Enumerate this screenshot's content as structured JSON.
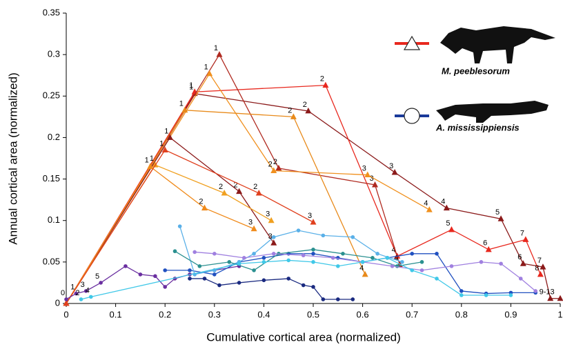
{
  "chart_data": {
    "type": "line",
    "x_label": "Cumulative cortical area (normalized)",
    "y_label": "Annual cortical area (normalized)",
    "xlim": [
      0,
      1
    ],
    "xticks": [
      0,
      0.1,
      0.2,
      0.3,
      0.4,
      0.5,
      0.6,
      0.7,
      0.8,
      0.9,
      1
    ],
    "ylim": [
      0,
      0.35
    ],
    "yticks": [
      0,
      0.05,
      0.1,
      0.15,
      0.2,
      0.25,
      0.3,
      0.35
    ],
    "legend": [
      {
        "name": "M. peeblesorum",
        "color": "#e8281e",
        "marker": "triangle"
      },
      {
        "name": "A. mississippiensis",
        "color": "#1a3a9a",
        "marker": "circle"
      }
    ],
    "series": [
      {
        "color": "#8b1a1a",
        "marker": "triangle",
        "x": [
          0,
          0.26,
          0.49,
          0.665,
          0.77,
          0.88,
          0.925,
          0.965,
          0.98,
          1.0
        ],
        "values": [
          0,
          0.253,
          0.232,
          0.158,
          0.115,
          0.102,
          0.048,
          0.044,
          0.006,
          0.006
        ],
        "point_labels": [
          null,
          "1",
          "2",
          "3",
          "4",
          "5",
          "6",
          "7",
          "9-13",
          null
        ]
      },
      {
        "color": "#e8281e",
        "marker": "triangle",
        "x": [
          0,
          0.26,
          0.525,
          0.67,
          0.78,
          0.855,
          0.93,
          0.96
        ],
        "values": [
          0,
          0.255,
          0.263,
          0.057,
          0.089,
          0.065,
          0.077,
          0.035
        ],
        "point_labels": [
          null,
          "1",
          "2",
          "4",
          "5",
          "6",
          "7",
          "8"
        ]
      },
      {
        "color": "#b02a20",
        "marker": "triangle",
        "x": [
          0,
          0.31,
          0.43,
          0.625,
          0.675
        ],
        "values": [
          0,
          0.3,
          0.163,
          0.143,
          0.047
        ],
        "point_labels": [
          null,
          "1",
          "2",
          "3",
          "4"
        ]
      },
      {
        "color": "#f0901e",
        "marker": "triangle",
        "x": [
          0,
          0.29,
          0.42,
          0.61,
          0.735
        ],
        "values": [
          0,
          0.277,
          0.16,
          0.155,
          0.113
        ],
        "point_labels": [
          null,
          "1",
          "2",
          "3",
          "4"
        ]
      },
      {
        "color": "#e88a1a",
        "marker": "triangle",
        "x": [
          0,
          0.24,
          0.46,
          0.605
        ],
        "values": [
          0,
          0.233,
          0.225,
          0.035
        ],
        "point_labels": [
          null,
          "1",
          "2",
          "4"
        ]
      },
      {
        "color": "#8b1a1a",
        "marker": "triangle",
        "x": [
          0,
          0.21,
          0.35,
          0.42
        ],
        "values": [
          0,
          0.2,
          0.135,
          0.073
        ],
        "point_labels": [
          null,
          "1",
          "2",
          "3"
        ]
      },
      {
        "color": "#f0a020",
        "marker": "triangle",
        "x": [
          0,
          0.18,
          0.32,
          0.415
        ],
        "values": [
          0,
          0.167,
          0.133,
          0.1
        ],
        "point_labels": [
          null,
          "1",
          "2",
          "3"
        ]
      },
      {
        "color": "#f08a1a",
        "marker": "triangle",
        "x": [
          0,
          0.17,
          0.28,
          0.38
        ],
        "values": [
          0,
          0.165,
          0.115,
          0.09
        ],
        "point_labels": [
          null,
          "1",
          "2",
          "3"
        ]
      },
      {
        "color": "#e0401e",
        "marker": "triangle",
        "x": [
          0,
          0.2,
          0.39,
          0.5
        ],
        "values": [
          0,
          0.185,
          0.133,
          0.098
        ],
        "point_labels": [
          null,
          "1",
          "2",
          "3"
        ]
      },
      {
        "color": "#6a2fa0",
        "marker": "circle",
        "x": [
          0,
          0.02,
          0.04,
          0.07,
          0.12,
          0.15,
          0.18,
          0.2,
          0.22,
          0.25,
          0.3,
          0.35
        ],
        "values": [
          0.005,
          0.012,
          0.015,
          0.025,
          0.045,
          0.035,
          0.033,
          0.02,
          0.03,
          0.035,
          0.04,
          0.045
        ],
        "point_labels": [
          "0",
          "1",
          "3",
          "5",
          null,
          null,
          null,
          null,
          null,
          null,
          null,
          null
        ]
      },
      {
        "color": "#2050c0",
        "marker": "circle",
        "x": [
          0.2,
          0.25,
          0.3,
          0.35,
          0.4,
          0.45,
          0.5,
          0.55,
          0.6,
          0.65,
          0.7,
          0.75,
          0.8,
          0.85,
          0.9,
          0.95
        ],
        "values": [
          0.04,
          0.04,
          0.035,
          0.05,
          0.055,
          0.06,
          0.06,
          0.055,
          0.05,
          0.055,
          0.06,
          0.06,
          0.015,
          0.012,
          0.013,
          0.013
        ],
        "point_labels": [
          null,
          null,
          null,
          null,
          null,
          null,
          null,
          null,
          null,
          null,
          null,
          null,
          null,
          null,
          null,
          null
        ]
      },
      {
        "color": "#5ab0e8",
        "marker": "circle",
        "x": [
          0.23,
          0.26,
          0.3,
          0.35,
          0.38,
          0.42,
          0.47,
          0.52,
          0.58,
          0.63,
          0.68
        ],
        "values": [
          0.093,
          0.035,
          0.04,
          0.05,
          0.06,
          0.08,
          0.088,
          0.082,
          0.08,
          0.06,
          0.05
        ],
        "point_labels": [
          null,
          null,
          null,
          null,
          null,
          null,
          null,
          null,
          null,
          null,
          null
        ]
      },
      {
        "color": "#1a2a80",
        "marker": "circle",
        "x": [
          0.25,
          0.28,
          0.31,
          0.35,
          0.4,
          0.45,
          0.48,
          0.5,
          0.52,
          0.55,
          0.58
        ],
        "values": [
          0.03,
          0.03,
          0.022,
          0.025,
          0.028,
          0.03,
          0.022,
          0.02,
          0.005,
          0.005,
          0.005
        ],
        "point_labels": [
          null,
          null,
          null,
          null,
          null,
          null,
          null,
          null,
          null,
          null,
          null
        ]
      },
      {
        "color": "#2a9090",
        "marker": "circle",
        "x": [
          0.22,
          0.27,
          0.33,
          0.38,
          0.43,
          0.5,
          0.56,
          0.62,
          0.67,
          0.72
        ],
        "values": [
          0.063,
          0.045,
          0.05,
          0.04,
          0.06,
          0.065,
          0.06,
          0.055,
          0.045,
          0.05
        ],
        "point_labels": [
          null,
          null,
          null,
          null,
          null,
          null,
          null,
          null,
          null,
          null
        ]
      },
      {
        "color": "#a080e0",
        "marker": "circle",
        "x": [
          0.26,
          0.3,
          0.36,
          0.42,
          0.48,
          0.54,
          0.6,
          0.66,
          0.72,
          0.78,
          0.84,
          0.88,
          0.92,
          0.95
        ],
        "values": [
          0.062,
          0.06,
          0.055,
          0.06,
          0.058,
          0.055,
          0.05,
          0.045,
          0.04,
          0.045,
          0.05,
          0.048,
          0.03,
          0.015
        ],
        "point_labels": [
          null,
          null,
          null,
          null,
          null,
          null,
          null,
          null,
          null,
          null,
          null,
          null,
          null,
          null
        ]
      },
      {
        "color": "#40c8e8",
        "marker": "circle",
        "x": [
          0.03,
          0.05,
          0.35,
          0.4,
          0.45,
          0.5,
          0.55,
          0.6,
          0.65,
          0.7,
          0.75,
          0.8,
          0.85,
          0.9
        ],
        "values": [
          0.005,
          0.008,
          0.048,
          0.05,
          0.052,
          0.05,
          0.045,
          0.05,
          0.055,
          0.04,
          0.03,
          0.01,
          0.01,
          0.01
        ],
        "point_labels": [
          "2",
          "4",
          null,
          null,
          null,
          null,
          null,
          null,
          null,
          null,
          null,
          null,
          null,
          null
        ]
      }
    ]
  }
}
